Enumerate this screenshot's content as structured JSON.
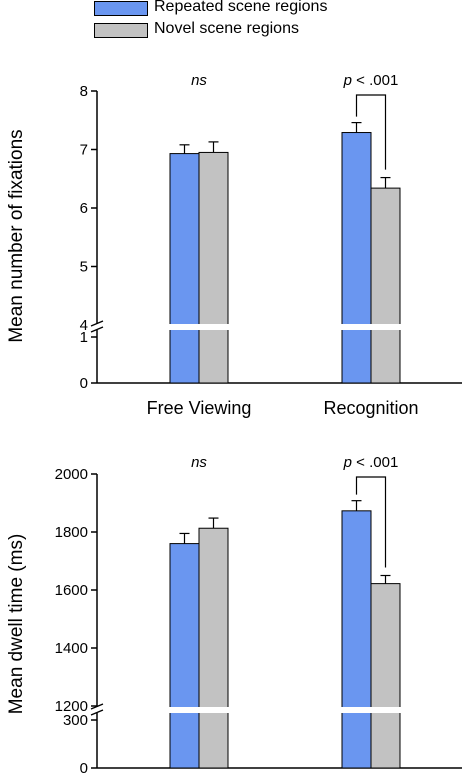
{
  "legend": {
    "items": [
      {
        "label": "Repeated scene regions",
        "color": "#6a96f0"
      },
      {
        "label": "Novel scene regions",
        "color": "#c2c2c2"
      }
    ]
  },
  "colors": {
    "repeated": "#6a96f0",
    "novel": "#c2c2c2",
    "axis": "#000000"
  },
  "chart_data": [
    {
      "type": "bar",
      "title": "",
      "xlabel": "",
      "ylabel": "Mean number of fixations",
      "categories": [
        "Free Viewing",
        "Recognition"
      ],
      "series": [
        {
          "name": "Repeated scene regions",
          "values": [
            6.93,
            7.29
          ],
          "errors": [
            0.15,
            0.17
          ]
        },
        {
          "name": "Novel scene regions",
          "values": [
            6.95,
            6.34
          ],
          "errors": [
            0.18,
            0.18
          ]
        }
      ],
      "ylim": [
        0,
        8
      ],
      "axis_break": {
        "lower": [
          0,
          1
        ],
        "upper": [
          4,
          8
        ]
      },
      "y_ticks": [
        "0",
        "1",
        "4",
        "5",
        "6",
        "7",
        "8"
      ],
      "annotations": [
        "ns",
        "p < .001"
      ]
    },
    {
      "type": "bar",
      "title": "",
      "xlabel": "",
      "ylabel": "Mean dwell time (ms)",
      "categories": [
        "",
        ""
      ],
      "series": [
        {
          "name": "Repeated scene regions",
          "values": [
            1760,
            1873
          ],
          "errors": [
            35,
            35
          ]
        },
        {
          "name": "Novel scene regions",
          "values": [
            1813,
            1622
          ],
          "errors": [
            35,
            28
          ]
        }
      ],
      "ylim": [
        0,
        2000
      ],
      "axis_break": {
        "lower": [
          0,
          300
        ],
        "upper": [
          1200,
          2000
        ]
      },
      "y_ticks": [
        "0",
        "300",
        "1200",
        "1400",
        "1600",
        "1800",
        "2000"
      ],
      "annotations": [
        "ns",
        "p < .001"
      ]
    }
  ]
}
